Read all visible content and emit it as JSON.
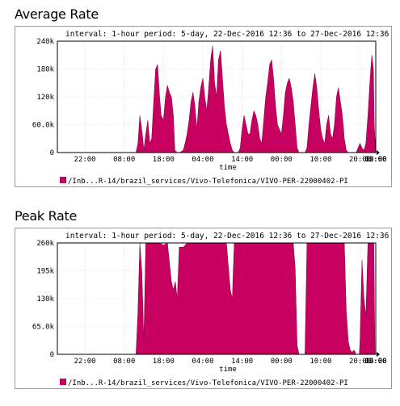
{
  "titles": [
    "Average Rate",
    "Peak Rate"
  ],
  "colors": {
    "series": "#c8005f",
    "grid": "#c8c8c8",
    "frame": "#000000"
  },
  "chart_data": [
    {
      "type": "area",
      "title": "Average Rate",
      "subtitle": "interval: 1-hour  period: 5-day, 22-Dec-2016 12:36 to 27-Dec-2016 12:36",
      "xlabel": "time",
      "ylabel": "",
      "xticks": [
        "22:00",
        "08:00",
        "18:00",
        "04:00",
        "14:00",
        "00:00",
        "10:00",
        "20:00",
        "06:00",
        "16:00",
        "02:00",
        "12:00"
      ],
      "yticks": [
        "0",
        "60.0k",
        "120k",
        "180k",
        "240k"
      ],
      "ytick_values": [
        0,
        60000,
        120000,
        180000,
        240000
      ],
      "ylim": [
        0,
        240000
      ],
      "grid": true,
      "legend_position": "bottom-left",
      "series": [
        {
          "name": "/Inb...R-14/brazil_services/Vivo-Telefonica/VIVO-PER-22000402-PI",
          "points": [
            [
              0,
              0
            ],
            [
              20,
              0
            ],
            [
              20.5,
              20000
            ],
            [
              21,
              80000
            ],
            [
              21.6,
              40000
            ],
            [
              22,
              5000
            ],
            [
              22.5,
              40000
            ],
            [
              23,
              70000
            ],
            [
              23.5,
              20000
            ],
            [
              24,
              30000
            ],
            [
              24.5,
              110000
            ],
            [
              25,
              180000
            ],
            [
              25.5,
              190000
            ],
            [
              26,
              120000
            ],
            [
              26.4,
              80000
            ],
            [
              27,
              70000
            ],
            [
              27.5,
              120000
            ],
            [
              28,
              145000
            ],
            [
              28.5,
              130000
            ],
            [
              29,
              120000
            ],
            [
              29.5,
              80000
            ],
            [
              29.9,
              5000
            ],
            [
              30.5,
              0
            ],
            [
              31,
              0
            ],
            [
              31.5,
              2000
            ],
            [
              32,
              5000
            ],
            [
              32.5,
              20000
            ],
            [
              33,
              40000
            ],
            [
              33.5,
              70000
            ],
            [
              34,
              110000
            ],
            [
              34.5,
              130000
            ],
            [
              35,
              100000
            ],
            [
              35.5,
              50000
            ],
            [
              36,
              110000
            ],
            [
              36.5,
              140000
            ],
            [
              37,
              160000
            ],
            [
              37.5,
              120000
            ],
            [
              38,
              90000
            ],
            [
              38.5,
              140000
            ],
            [
              39,
              200000
            ],
            [
              39.5,
              230000
            ],
            [
              40,
              150000
            ],
            [
              40.5,
              120000
            ],
            [
              41,
              200000
            ],
            [
              41.5,
              220000
            ],
            [
              42,
              160000
            ],
            [
              42.5,
              100000
            ],
            [
              43,
              60000
            ],
            [
              43.5,
              40000
            ],
            [
              44,
              20000
            ],
            [
              44.5,
              5000
            ],
            [
              45,
              0
            ],
            [
              46,
              0
            ],
            [
              46.5,
              10000
            ],
            [
              47,
              50000
            ],
            [
              47.5,
              80000
            ],
            [
              48,
              60000
            ],
            [
              48.5,
              40000
            ],
            [
              49,
              40000
            ],
            [
              49.5,
              70000
            ],
            [
              50,
              90000
            ],
            [
              50.5,
              80000
            ],
            [
              51,
              60000
            ],
            [
              51.5,
              30000
            ],
            [
              52,
              20000
            ],
            [
              52.5,
              70000
            ],
            [
              53,
              120000
            ],
            [
              53.5,
              150000
            ],
            [
              54,
              190000
            ],
            [
              54.5,
              200000
            ],
            [
              55,
              160000
            ],
            [
              55.5,
              100000
            ],
            [
              56,
              60000
            ],
            [
              56.5,
              50000
            ],
            [
              57,
              40000
            ],
            [
              57.5,
              80000
            ],
            [
              58,
              130000
            ],
            [
              58.5,
              150000
            ],
            [
              59,
              160000
            ],
            [
              59.5,
              140000
            ],
            [
              60,
              110000
            ],
            [
              60.5,
              60000
            ],
            [
              61,
              10000
            ],
            [
              61.5,
              0
            ],
            [
              62,
              0
            ],
            [
              63,
              0
            ],
            [
              63.5,
              10000
            ],
            [
              64,
              60000
            ],
            [
              64.5,
              100000
            ],
            [
              65,
              140000
            ],
            [
              65.5,
              170000
            ],
            [
              66,
              140000
            ],
            [
              66.5,
              90000
            ],
            [
              67,
              50000
            ],
            [
              67.5,
              30000
            ],
            [
              68,
              20000
            ],
            [
              68.5,
              60000
            ],
            [
              69,
              80000
            ],
            [
              69.5,
              40000
            ],
            [
              70,
              30000
            ],
            [
              70.5,
              60000
            ],
            [
              71,
              120000
            ],
            [
              71.5,
              140000
            ],
            [
              72,
              110000
            ],
            [
              72.5,
              80000
            ],
            [
              73,
              30000
            ],
            [
              73.5,
              5000
            ],
            [
              74,
              0
            ],
            [
              76,
              0
            ],
            [
              76.5,
              10000
            ],
            [
              77,
              20000
            ],
            [
              77.5,
              10000
            ],
            [
              78,
              5000
            ],
            [
              78.5,
              20000
            ],
            [
              79,
              80000
            ],
            [
              79.5,
              150000
            ],
            [
              80,
              210000
            ],
            [
              80.4,
              180000
            ],
            [
              80.6,
              60000
            ],
            [
              81,
              0
            ],
            [
              81,
              0
            ]
          ]
        }
      ]
    },
    {
      "type": "area",
      "title": "Peak Rate",
      "subtitle": "interval: 1-hour  period: 5-day, 22-Dec-2016 12:36 to 27-Dec-2016 12:36",
      "xlabel": "time",
      "ylabel": "",
      "xticks": [
        "22:00",
        "08:00",
        "18:00",
        "04:00",
        "14:00",
        "00:00",
        "10:00",
        "20:00",
        "06:00",
        "16:00",
        "02:00",
        "12:00"
      ],
      "yticks": [
        "0",
        "65.0k",
        "130k",
        "195k",
        "260k"
      ],
      "ytick_values": [
        0,
        65000,
        130000,
        195000,
        260000
      ],
      "ylim": [
        0,
        260000
      ],
      "grid": true,
      "legend_position": "bottom-left",
      "series": [
        {
          "name": "/Inb...R-14/brazil_services/Vivo-Telefonica/VIVO-PER-22000402-PI",
          "points": [
            [
              0,
              0
            ],
            [
              20,
              0
            ],
            [
              20.5,
              100000
            ],
            [
              21,
              260000
            ],
            [
              21.5,
              190000
            ],
            [
              22,
              30000
            ],
            [
              22.5,
              260000
            ],
            [
              23,
              260000
            ],
            [
              24,
              260000
            ],
            [
              25,
              260000
            ],
            [
              26,
              260000
            ],
            [
              27,
              255000
            ],
            [
              28,
              260000
            ],
            [
              29,
              170000
            ],
            [
              29.5,
              150000
            ],
            [
              30,
              170000
            ],
            [
              30.5,
              130000
            ],
            [
              31,
              250000
            ],
            [
              32,
              250000
            ],
            [
              33,
              260000
            ],
            [
              34,
              260000
            ],
            [
              35,
              260000
            ],
            [
              36,
              260000
            ],
            [
              37,
              260000
            ],
            [
              38,
              260000
            ],
            [
              39,
              260000
            ],
            [
              40,
              260000
            ],
            [
              41,
              260000
            ],
            [
              42,
              260000
            ],
            [
              43,
              260000
            ],
            [
              44,
              150000
            ],
            [
              44.5,
              130000
            ],
            [
              45,
              260000
            ],
            [
              46,
              260000
            ],
            [
              47,
              260000
            ],
            [
              48,
              260000
            ],
            [
              49,
              260000
            ],
            [
              50,
              260000
            ],
            [
              51,
              260000
            ],
            [
              52,
              260000
            ],
            [
              53,
              260000
            ],
            [
              54,
              260000
            ],
            [
              55,
              260000
            ],
            [
              56,
              260000
            ],
            [
              57,
              260000
            ],
            [
              58,
              260000
            ],
            [
              59,
              260000
            ],
            [
              60,
              260000
            ],
            [
              60.5,
              200000
            ],
            [
              61,
              20000
            ],
            [
              61.5,
              0
            ],
            [
              62,
              0
            ],
            [
              63,
              0
            ],
            [
              63.5,
              260000
            ],
            [
              64,
              260000
            ],
            [
              65,
              260000
            ],
            [
              66,
              260000
            ],
            [
              67,
              260000
            ],
            [
              68,
              260000
            ],
            [
              69,
              260000
            ],
            [
              70,
              260000
            ],
            [
              71,
              260000
            ],
            [
              72,
              260000
            ],
            [
              73,
              260000
            ],
            [
              73.5,
              100000
            ],
            [
              74,
              30000
            ],
            [
              74.5,
              10000
            ],
            [
              75,
              5000
            ],
            [
              75.5,
              10000
            ],
            [
              76,
              0
            ],
            [
              76.8,
              0
            ],
            [
              77,
              30000
            ],
            [
              77.5,
              220000
            ],
            [
              78,
              130000
            ],
            [
              78.5,
              90000
            ],
            [
              79,
              260000
            ],
            [
              80,
              260000
            ],
            [
              80.5,
              260000
            ],
            [
              80.8,
              0
            ],
            [
              81,
              0
            ]
          ]
        }
      ]
    }
  ]
}
